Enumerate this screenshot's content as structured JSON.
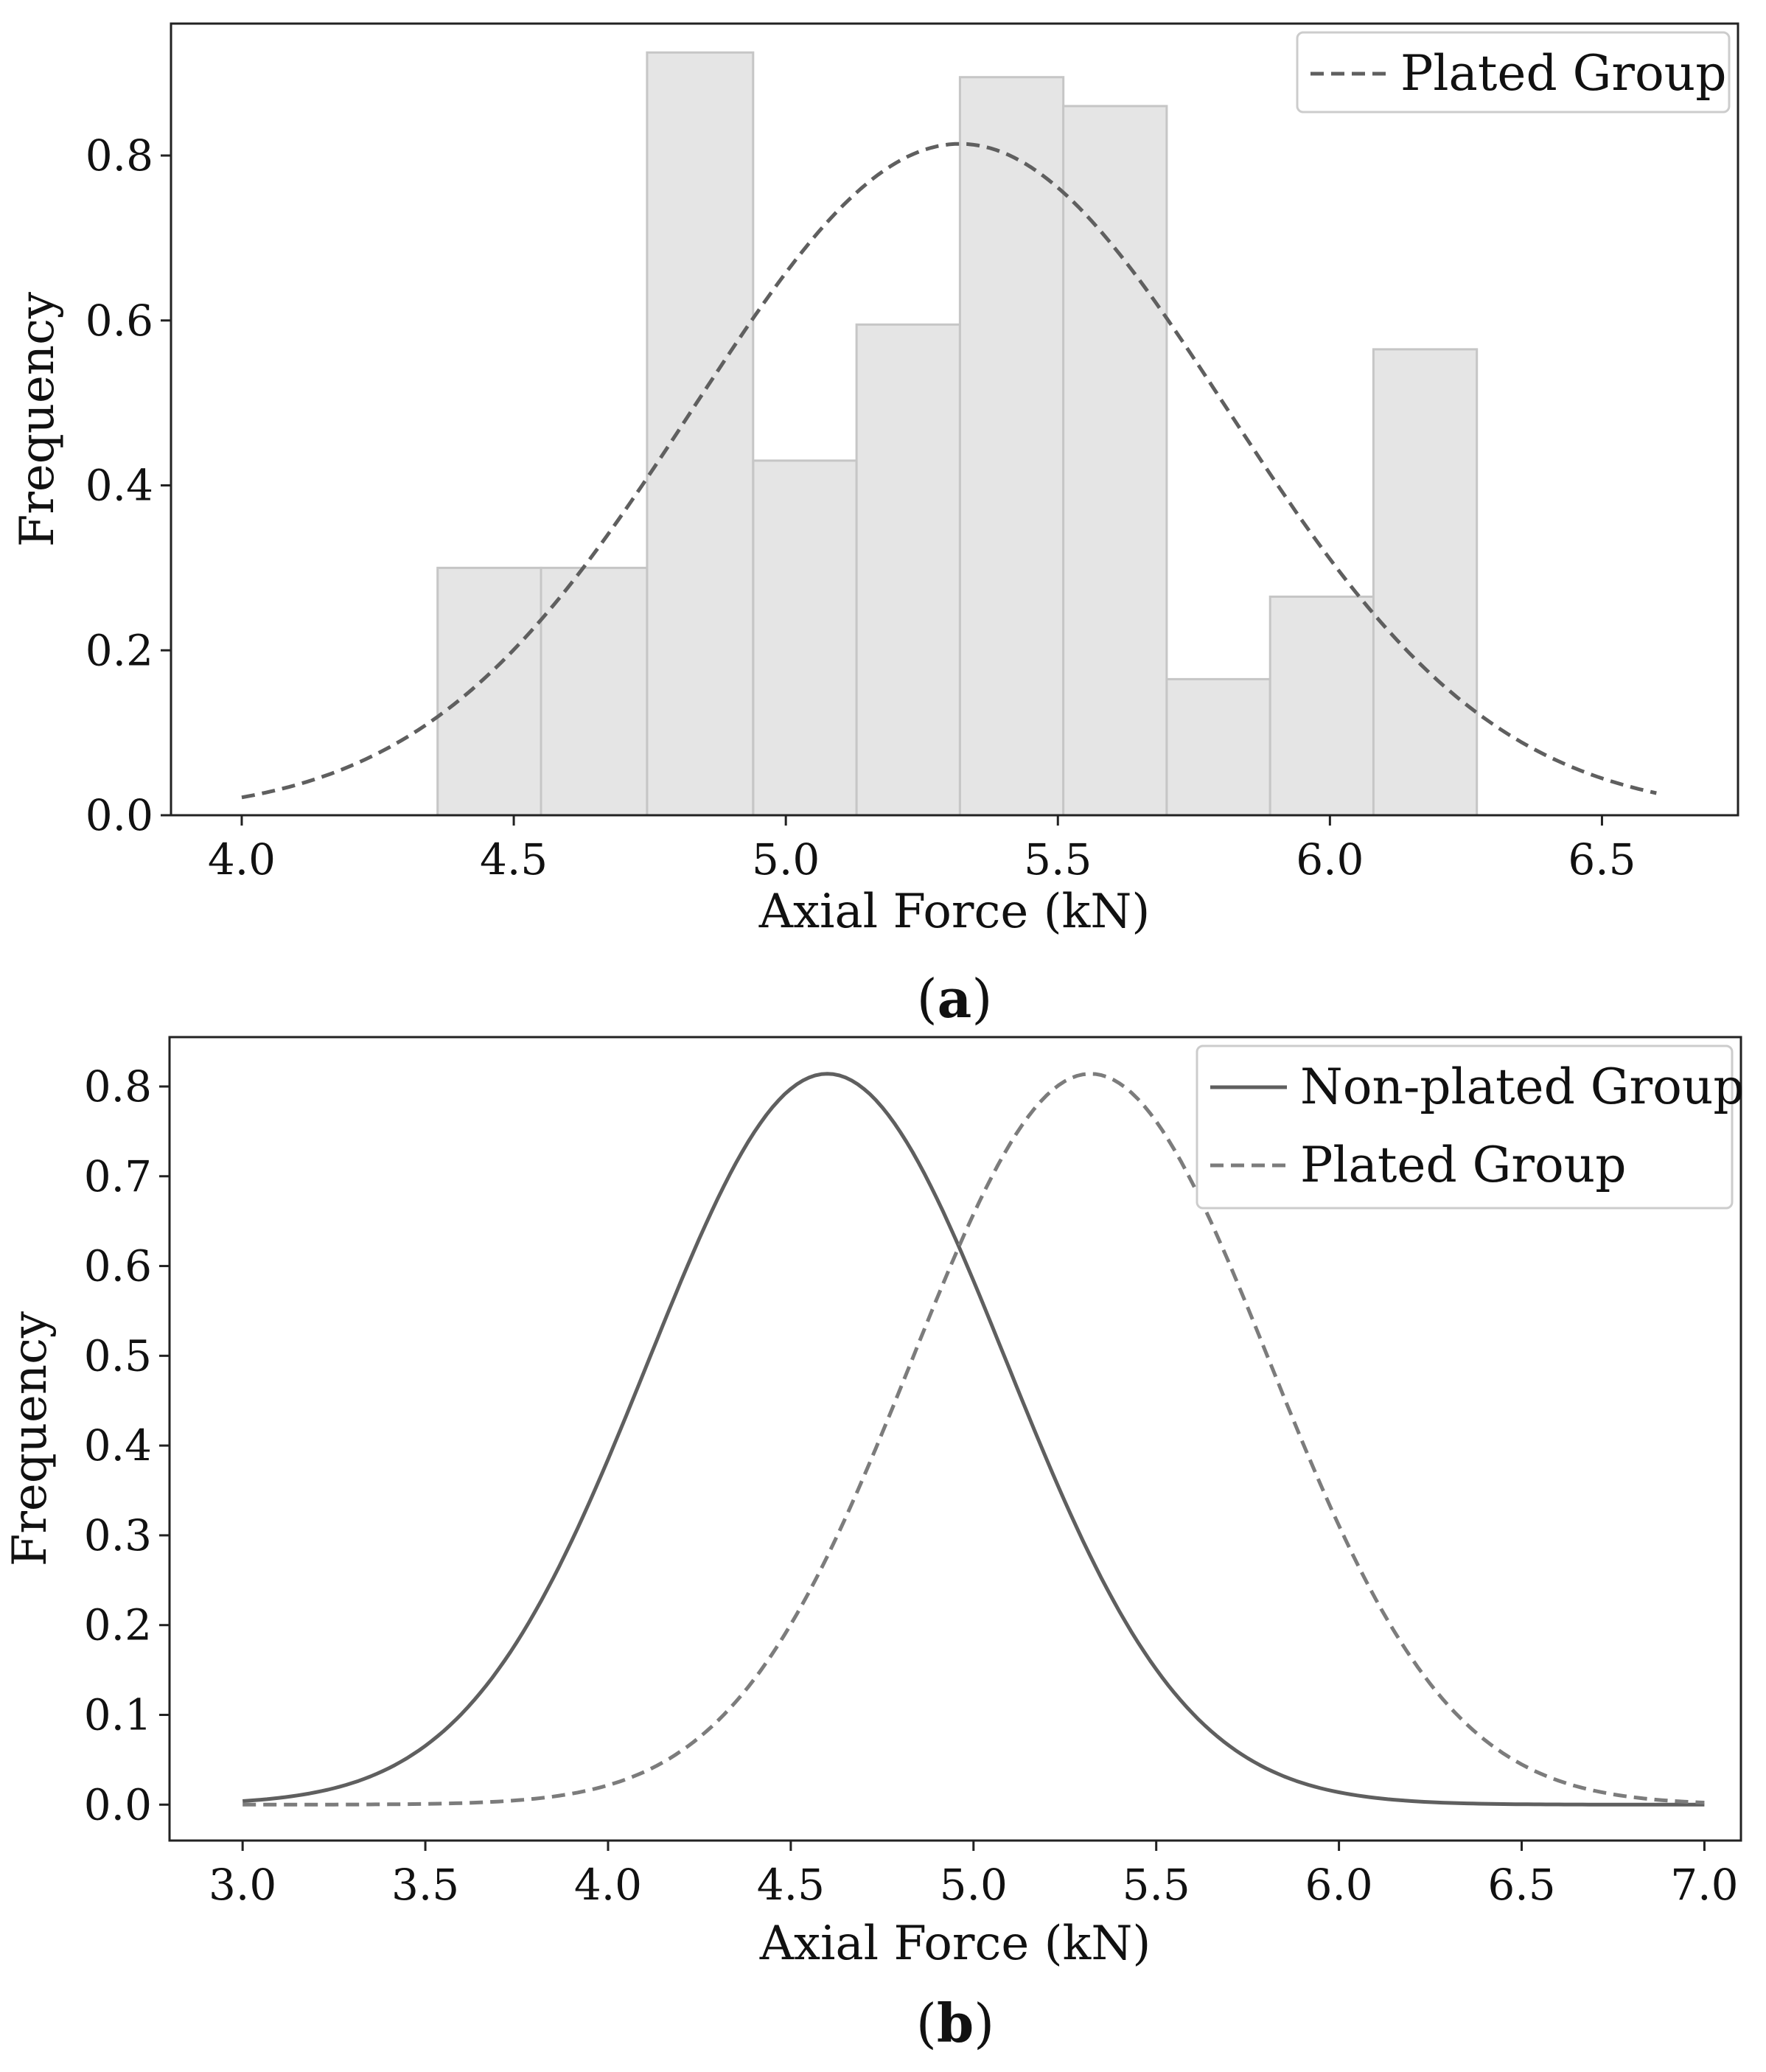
{
  "chart_data": [
    {
      "id": "a",
      "type": "bar",
      "caption_letter": "a",
      "xlabel": "Axial Force (kN)",
      "ylabel": "Frequency",
      "xlim": [
        3.87,
        6.75
      ],
      "ylim": [
        0.0,
        0.96
      ],
      "xticks": [
        4.0,
        4.5,
        5.0,
        5.5,
        6.0,
        6.5
      ],
      "xtick_labels": [
        "4.0",
        "4.5",
        "5.0",
        "5.5",
        "6.0",
        "6.5"
      ],
      "yticks": [
        0.0,
        0.2,
        0.4,
        0.6,
        0.8
      ],
      "ytick_labels": [
        "0.0",
        "0.2",
        "0.4",
        "0.6",
        "0.8"
      ],
      "grid": false,
      "legend_position": "top-right",
      "histogram": {
        "bin_edges": [
          4.36,
          4.55,
          4.745,
          4.94,
          5.13,
          5.32,
          5.51,
          5.7,
          5.89,
          6.08,
          6.27
        ],
        "values": [
          0.3,
          0.3,
          0.925,
          0.43,
          0.595,
          0.895,
          0.86,
          0.165,
          0.265,
          0.565
        ],
        "color": "#e5e5e5",
        "edge_color": "#c6c6c6"
      },
      "series": [
        {
          "name": "Plated Group",
          "curve": "normal",
          "mean": 5.32,
          "sd": 0.49,
          "x_range": [
            4.0,
            6.6
          ],
          "style": "dashed",
          "color": "#5f5f5f"
        }
      ]
    },
    {
      "id": "b",
      "type": "line",
      "caption_letter": "b",
      "xlabel": "Axial Force (kN)",
      "ylabel": "Frequency",
      "xlim": [
        2.8,
        7.1
      ],
      "ylim": [
        -0.04,
        0.855
      ],
      "xticks": [
        3.0,
        3.5,
        4.0,
        4.5,
        5.0,
        5.5,
        6.0,
        6.5,
        7.0
      ],
      "xtick_labels": [
        "3.0",
        "3.5",
        "4.0",
        "4.5",
        "5.0",
        "5.5",
        "6.0",
        "6.5",
        "7.0"
      ],
      "yticks": [
        0.0,
        0.1,
        0.2,
        0.3,
        0.4,
        0.5,
        0.6,
        0.7,
        0.8
      ],
      "ytick_labels": [
        "0.0",
        "0.1",
        "0.2",
        "0.3",
        "0.4",
        "0.5",
        "0.6",
        "0.7",
        "0.8"
      ],
      "grid": false,
      "legend_position": "top-right",
      "series": [
        {
          "name": "Non-plated Group",
          "curve": "normal",
          "mean": 4.6,
          "sd": 0.49,
          "x_range": [
            3.0,
            7.0
          ],
          "style": "solid",
          "color": "#5f5f5f"
        },
        {
          "name": "Plated Group",
          "curve": "normal",
          "mean": 5.32,
          "sd": 0.49,
          "x_range": [
            3.0,
            7.0
          ],
          "style": "dashed",
          "color": "#7c7c7c"
        }
      ]
    }
  ]
}
